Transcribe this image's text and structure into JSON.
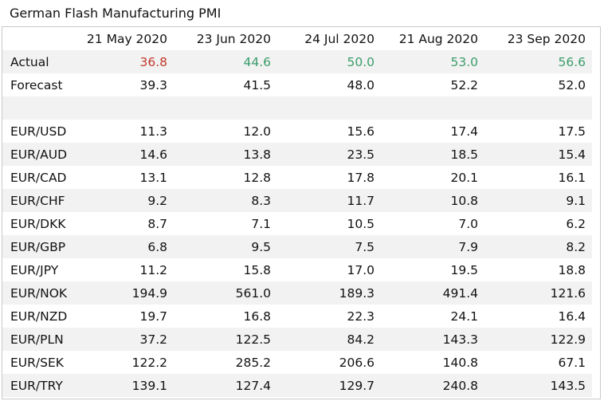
{
  "title": "German Flash Manufacturing PMI",
  "colors": {
    "negative": "#c0392b",
    "positive": "#3a9d6a",
    "band": "#f2f2f2"
  },
  "columns": [
    "21 May 2020",
    "23 Jun 2020",
    "24 Jul 2020",
    "21 Aug 2020",
    "23 Sep 2020"
  ],
  "actual": {
    "label": "Actual",
    "values": [
      "36.8",
      "44.6",
      "50.0",
      "53.0",
      "56.6"
    ],
    "tone": [
      "neg",
      "pos",
      "pos",
      "pos",
      "pos"
    ]
  },
  "forecast": {
    "label": "Forecast",
    "values": [
      "39.3",
      "41.5",
      "48.0",
      "52.2",
      "52.0"
    ]
  },
  "pairs": [
    {
      "label": "EUR/USD",
      "values": [
        "11.3",
        "12.0",
        "15.6",
        "17.4",
        "17.5"
      ]
    },
    {
      "label": "EUR/AUD",
      "values": [
        "14.6",
        "13.8",
        "23.5",
        "18.5",
        "15.4"
      ]
    },
    {
      "label": "EUR/CAD",
      "values": [
        "13.1",
        "12.8",
        "17.8",
        "20.1",
        "16.1"
      ]
    },
    {
      "label": "EUR/CHF",
      "values": [
        "9.2",
        "8.3",
        "11.7",
        "10.8",
        "9.1"
      ]
    },
    {
      "label": "EUR/DKK",
      "values": [
        "8.7",
        "7.1",
        "10.5",
        "7.0",
        "6.2"
      ]
    },
    {
      "label": "EUR/GBP",
      "values": [
        "6.8",
        "9.5",
        "7.5",
        "7.9",
        "8.2"
      ]
    },
    {
      "label": "EUR/JPY",
      "values": [
        "11.2",
        "15.8",
        "17.0",
        "19.5",
        "18.8"
      ]
    },
    {
      "label": "EUR/NOK",
      "values": [
        "194.9",
        "561.0",
        "189.3",
        "491.4",
        "121.6"
      ]
    },
    {
      "label": "EUR/NZD",
      "values": [
        "19.7",
        "16.8",
        "22.3",
        "24.1",
        "16.4"
      ]
    },
    {
      "label": "EUR/PLN",
      "values": [
        "37.2",
        "122.5",
        "84.2",
        "143.3",
        "122.9"
      ]
    },
    {
      "label": "EUR/SEK",
      "values": [
        "122.2",
        "285.2",
        "206.6",
        "140.8",
        "67.1"
      ]
    },
    {
      "label": "EUR/TRY",
      "values": [
        "139.1",
        "127.4",
        "129.7",
        "240.8",
        "143.5"
      ]
    }
  ]
}
